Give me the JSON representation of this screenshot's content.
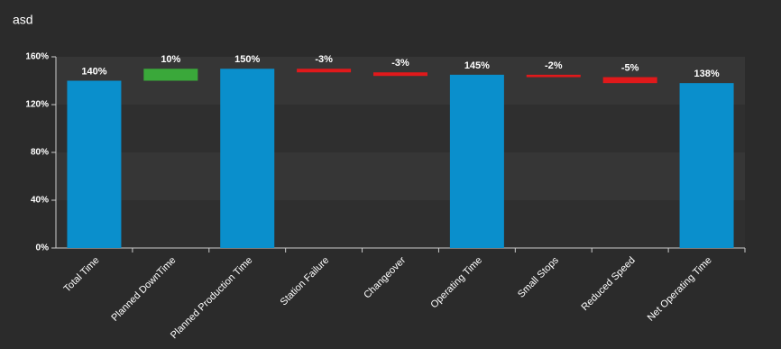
{
  "chart_data": {
    "type": "waterfall",
    "title": "asd",
    "categories": [
      "Total Time",
      "Planned DownTime",
      "Planned Production Time",
      "Station Failure",
      "Changeover",
      "Operating Time",
      "Small Stops",
      "Reduced Speed",
      "Net Operating Time"
    ],
    "values": [
      140,
      10,
      150,
      -3,
      -3,
      145,
      -2,
      -5,
      138
    ],
    "value_labels": [
      "140%",
      "10%",
      "150%",
      "-3%",
      "-3%",
      "145%",
      "-2%",
      "-5%",
      "138%"
    ],
    "measures": [
      "total",
      "relative",
      "total",
      "relative",
      "relative",
      "total",
      "relative",
      "relative",
      "total"
    ],
    "colors": {
      "total": "#0a8fcc",
      "increase": "#3aa83a",
      "decrease": "#e0191b"
    },
    "ylim": [
      0,
      160
    ],
    "yticks": [
      {
        "value": 0,
        "label": "0%"
      },
      {
        "value": 40,
        "label": "40%"
      },
      {
        "value": 80,
        "label": "80%"
      },
      {
        "value": 120,
        "label": "120%"
      },
      {
        "value": 160,
        "label": "160%"
      }
    ],
    "grid": "bands"
  }
}
